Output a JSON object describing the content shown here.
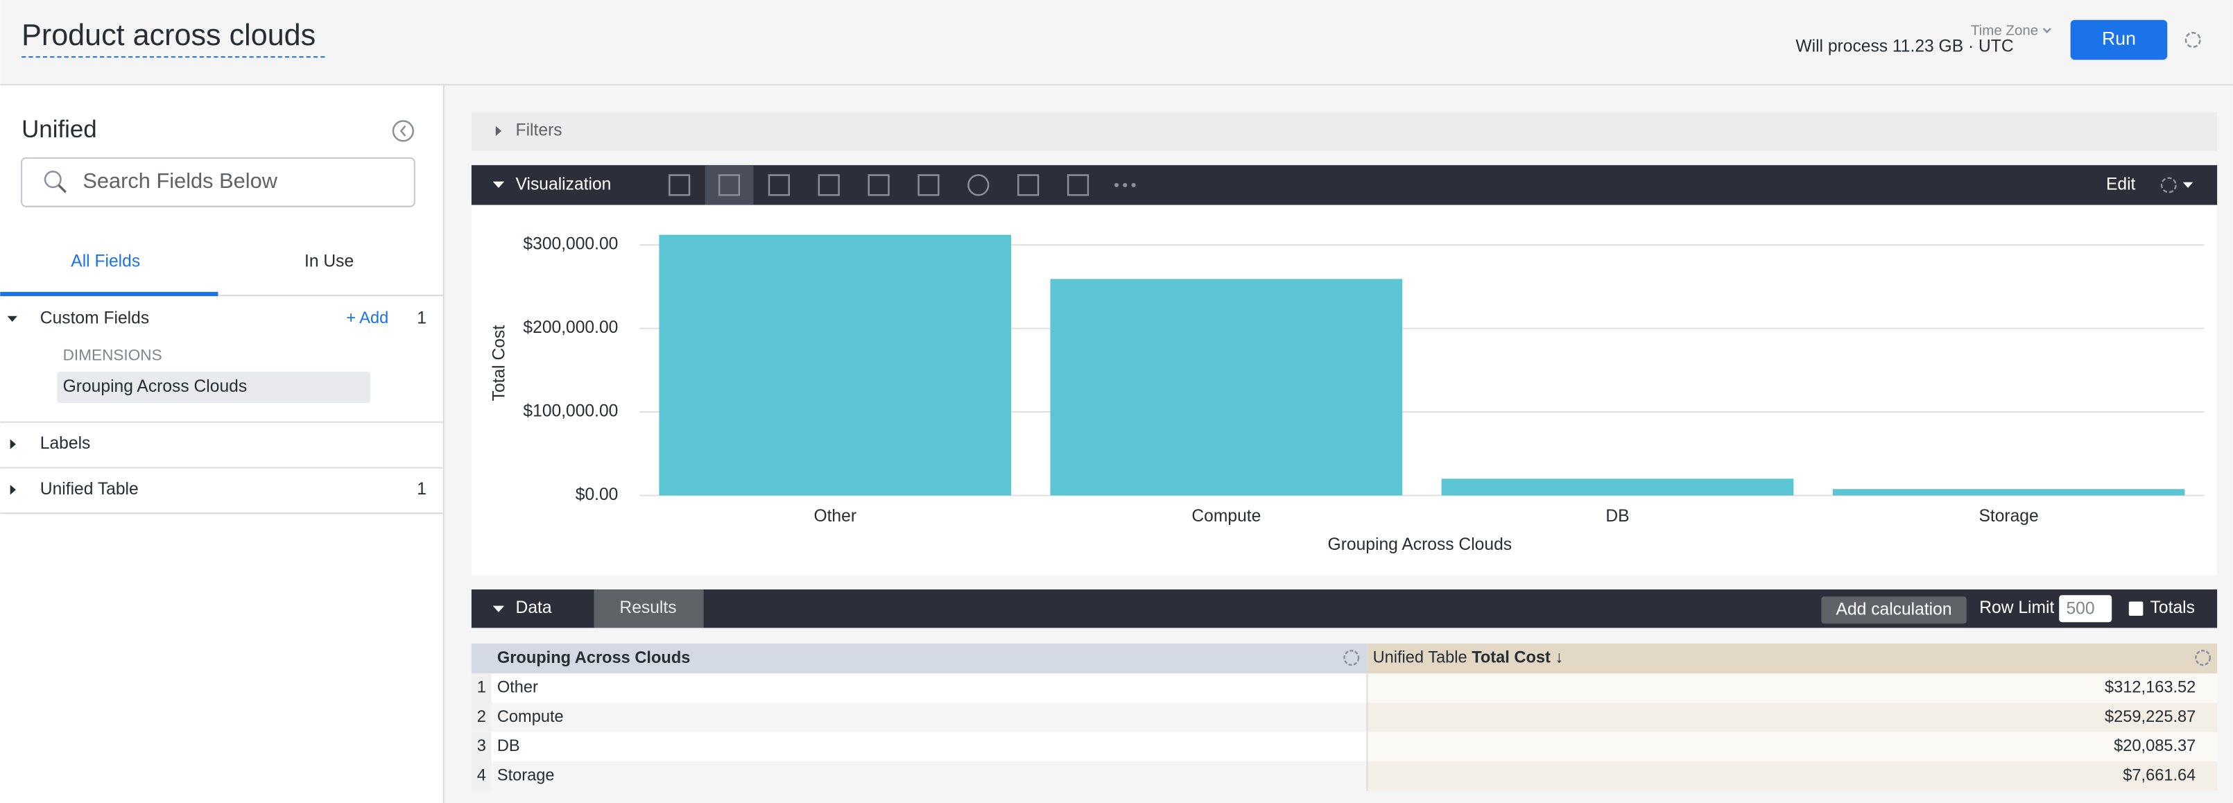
{
  "header": {
    "title": "Product across clouds",
    "time_zone_label": "Time Zone",
    "process_info": "Will process 11.23 GB · UTC",
    "run_button": "Run"
  },
  "sidebar": {
    "title": "Unified",
    "search_placeholder": "Search Fields Below",
    "tabs": [
      "All Fields",
      "In Use"
    ],
    "custom_fields": {
      "label": "Custom Fields",
      "add": "+ Add",
      "count": 1,
      "group": "DIMENSIONS",
      "item": "Grouping Across Clouds"
    },
    "labels": {
      "label": "Labels"
    },
    "unified_table": {
      "label": "Unified Table",
      "count": 1
    }
  },
  "filters": {
    "label": "Filters"
  },
  "visualization": {
    "label": "Visualization",
    "edit": "Edit"
  },
  "chart_data": {
    "type": "bar",
    "x_label": "Grouping Across Clouds",
    "y_label": "Total Cost",
    "categories": [
      "Other",
      "Compute",
      "DB",
      "Storage"
    ],
    "values": [
      312163.52,
      259225.87,
      20085.37,
      7661.64
    ],
    "color": "#5bc5d4",
    "ylim": [
      0,
      320000
    ],
    "yticks": [
      {
        "value": 0,
        "label": "$0.00"
      },
      {
        "value": 100000,
        "label": "$100,000.00"
      },
      {
        "value": 200000,
        "label": "$200,000.00"
      },
      {
        "value": 300000,
        "label": "$300,000.00"
      }
    ],
    "grid": true
  },
  "data_panel": {
    "tabs": [
      "Data",
      "Results"
    ],
    "add_calculation": "Add calculation",
    "row_limit_label": "Row Limit",
    "row_limit": 500,
    "totals": "Totals"
  },
  "table": {
    "columns": [
      "Grouping Across Clouds",
      {
        "prefix": "Unified Table",
        "name": "Total Cost ↓"
      }
    ],
    "rows": [
      [
        1,
        "Other",
        "$312,163.52"
      ],
      [
        2,
        "Compute",
        "$259,225.87"
      ],
      [
        3,
        "DB",
        "$20,085.37"
      ],
      [
        4,
        "Storage",
        "$7,661.64"
      ]
    ]
  }
}
